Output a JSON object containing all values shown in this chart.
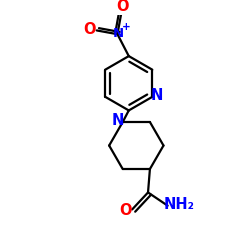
{
  "bg_color": "#ffffff",
  "atom_colors": {
    "N": "#0000ff",
    "O": "#ff0000",
    "C": "#000000"
  },
  "bond_color": "#000000",
  "bond_width": 1.6,
  "dbo": 0.055,
  "figsize": [
    2.5,
    2.5
  ],
  "dpi": 100,
  "xlim": [
    0.0,
    5.5
  ],
  "ylim": [
    0.0,
    6.2
  ]
}
